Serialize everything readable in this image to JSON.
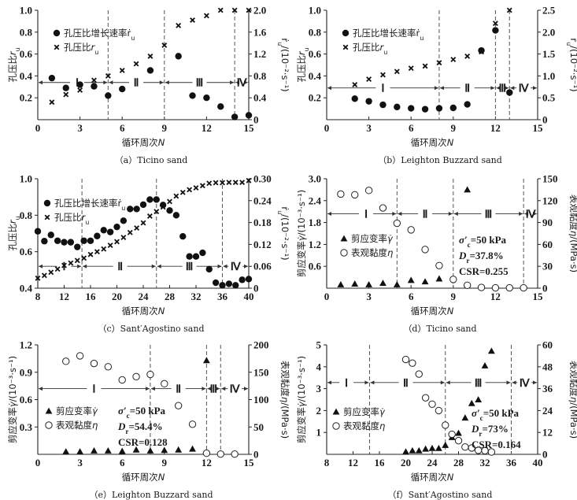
{
  "chart_data": [
    {
      "id": "a",
      "type": "scatter",
      "caption": "（a）Ticino sand",
      "xlabel": "循环周次N",
      "ylabel": "孔压比r_u",
      "ylabel_right": "ṙ_u/(10⁻²·s⁻¹)",
      "xlim": [
        0,
        15
      ],
      "xticks": [
        0,
        3,
        6,
        9,
        12,
        15
      ],
      "ylim": [
        0,
        1.0
      ],
      "yticks": [
        0.2,
        0.4,
        0.6,
        0.8,
        1.0
      ],
      "ylim_right": [
        0,
        2.0
      ],
      "yticks_right": [
        0,
        0.4,
        0.8,
        1.2,
        1.6,
        2.0
      ],
      "stage_boundaries": [
        5,
        9,
        14
      ],
      "stage_arrow_y": 0.34,
      "stages": [
        {
          "label": "Ⅰ",
          "from": 0,
          "to": 5,
          "at": 2.8
        },
        {
          "label": "Ⅱ",
          "from": 5,
          "to": 9,
          "at": 7
        },
        {
          "label": "Ⅲ",
          "from": 9,
          "to": 14,
          "at": 11.5
        },
        {
          "label": "Ⅳ",
          "from": 14,
          "to": 15,
          "at": 14.5
        }
      ],
      "legend": [
        {
          "marker": "dot",
          "label": "孔压比增长速率ṙ_u"
        },
        {
          "marker": "cross",
          "label": "孔压比r_u"
        }
      ],
      "series": [
        {
          "name": "孔压比增长速率ṙ_u",
          "marker": "dot",
          "axis": "right",
          "x": [
            1,
            2,
            3,
            4,
            5,
            6,
            8,
            10,
            11,
            12,
            13,
            14,
            15
          ],
          "y": [
            0.76,
            0.58,
            0.64,
            0.61,
            0.44,
            0.56,
            0.9,
            1.16,
            0.44,
            0.4,
            0.24,
            0.05,
            0.08
          ]
        },
        {
          "name": "孔压比r_u",
          "marker": "cross",
          "axis": "left",
          "x": [
            1,
            2,
            3,
            4,
            5,
            6,
            7,
            8,
            9,
            10,
            11,
            12,
            13,
            14,
            15
          ],
          "y": [
            0.16,
            0.23,
            0.27,
            0.36,
            0.4,
            0.45,
            0.51,
            0.58,
            0.68,
            0.86,
            0.91,
            0.95,
            1.0,
            1.0,
            1.0
          ]
        }
      ],
      "annotations": []
    },
    {
      "id": "b",
      "type": "scatter",
      "caption": "（b）Leighton Buzzard sand",
      "xlabel": "循环周次N",
      "ylabel": "孔压比r_u",
      "ylabel_right": "ṙ_u/(10⁻²·s⁻¹)",
      "xlim": [
        0,
        15
      ],
      "xticks": [
        0,
        3,
        6,
        9,
        12,
        15
      ],
      "ylim": [
        0,
        1.0
      ],
      "yticks": [
        0.2,
        0.4,
        0.6,
        0.8,
        1.0
      ],
      "ylim_right": [
        0,
        2.5
      ],
      "yticks_right": [
        0,
        0.5,
        1.0,
        1.5,
        2.0,
        2.5
      ],
      "stage_boundaries": [
        8,
        12,
        13
      ],
      "stage_arrow_y": 0.29,
      "stages": [
        {
          "label": "Ⅰ",
          "from": 0,
          "to": 8,
          "at": 4
        },
        {
          "label": "Ⅱ",
          "from": 8,
          "to": 12,
          "at": 10
        },
        {
          "label": "Ⅲ",
          "from": 12,
          "to": 13,
          "at": 12.5
        },
        {
          "label": "Ⅳ",
          "from": 13,
          "to": 15,
          "at": 14
        }
      ],
      "legend": [
        {
          "marker": "dot",
          "label": "孔压比增长速率ṙ_u"
        },
        {
          "marker": "cross",
          "label": "孔压比r_u"
        }
      ],
      "series": [
        {
          "name": "孔压比增长速率ṙ_u",
          "marker": "dot",
          "axis": "right",
          "x": [
            2,
            3,
            4,
            5,
            6,
            7,
            8,
            9,
            10,
            11,
            12,
            13
          ],
          "y": [
            0.48,
            0.42,
            0.34,
            0.29,
            0.26,
            0.24,
            0.26,
            0.27,
            0.35,
            1.58,
            2.04,
            0.62
          ]
        },
        {
          "name": "孔压比r_u",
          "marker": "cross",
          "axis": "left",
          "x": [
            2,
            3,
            4,
            5,
            6,
            7,
            8,
            9,
            10,
            11,
            12,
            13
          ],
          "y": [
            0.32,
            0.37,
            0.41,
            0.44,
            0.47,
            0.49,
            0.52,
            0.55,
            0.58,
            0.62,
            0.88,
            1.0
          ]
        }
      ],
      "annotations": []
    },
    {
      "id": "c",
      "type": "scatter",
      "caption": "（c）Sant′Agostino sand",
      "xlabel": "循环周次N",
      "ylabel": "孔压比r_u",
      "ylabel_right": "ṙ_u/(10⁻²·s⁻¹)",
      "xlim": [
        8,
        40
      ],
      "xticks": [
        8,
        12,
        16,
        20,
        24,
        28,
        32,
        36,
        40
      ],
      "ylim": [
        0.4,
        1.0
      ],
      "yticks": [
        0.4,
        0.6,
        0.8,
        1.0
      ],
      "ylim_right": [
        0,
        0.3
      ],
      "yticks_right": [
        0,
        0.06,
        0.12,
        0.18,
        0.24,
        0.3
      ],
      "stage_boundaries": [
        14.7,
        26,
        36
      ],
      "stage_arrow_y": 0.52,
      "stages": [
        {
          "label": "Ⅰ",
          "from": 8,
          "to": 14.7,
          "at": 12
        },
        {
          "label": "Ⅱ",
          "from": 14.7,
          "to": 26,
          "at": 20.5
        },
        {
          "label": "Ⅲ",
          "from": 26,
          "to": 36,
          "at": 31
        },
        {
          "label": "Ⅳ",
          "from": 36,
          "to": 40,
          "at": 38
        }
      ],
      "legend": [
        {
          "marker": "dot",
          "label": "孔压比增长速率ṙ_u"
        },
        {
          "marker": "cross",
          "label": "孔压比r_u"
        }
      ],
      "series": [
        {
          "name": "孔压比增长速率ṙ_u",
          "marker": "dot",
          "axis": "right",
          "x": [
            8,
            9,
            10,
            11,
            12,
            13,
            14,
            15,
            16,
            17,
            18,
            19,
            20,
            21,
            22,
            23,
            24,
            25,
            26,
            27,
            28,
            29,
            30,
            31,
            32,
            33,
            34,
            35,
            36,
            37,
            38,
            39,
            40
          ],
          "y": [
            0.156,
            0.129,
            0.146,
            0.13,
            0.126,
            0.126,
            0.113,
            0.13,
            0.13,
            0.143,
            0.159,
            0.154,
            0.168,
            0.185,
            0.217,
            0.217,
            0.229,
            0.243,
            0.243,
            0.228,
            0.213,
            0.2,
            0.142,
            0.087,
            0.087,
            0.097,
            0.052,
            0.015,
            0.008,
            0.012,
            0.008,
            0.023,
            0.025
          ]
        },
        {
          "name": "孔压比r_u",
          "marker": "cross",
          "axis": "left",
          "x": [
            8,
            9,
            10,
            11,
            12,
            13,
            14,
            15,
            16,
            17,
            18,
            19,
            20,
            21,
            22,
            23,
            24,
            25,
            26,
            27,
            28,
            29,
            30,
            31,
            32,
            33,
            34,
            35,
            36,
            37,
            38,
            39,
            40
          ],
          "y": [
            0.455,
            0.47,
            0.487,
            0.505,
            0.525,
            0.538,
            0.552,
            0.565,
            0.585,
            0.6,
            0.615,
            0.635,
            0.655,
            0.678,
            0.705,
            0.73,
            0.758,
            0.795,
            0.82,
            0.845,
            0.875,
            0.905,
            0.925,
            0.94,
            0.95,
            0.962,
            0.975,
            0.978,
            0.978,
            0.98,
            0.98,
            0.98,
            0.99
          ]
        }
      ],
      "annotations": []
    },
    {
      "id": "d",
      "type": "scatter",
      "caption": "（d）Ticino sand",
      "xlabel": "循环周次N",
      "ylabel": "剪应变率γ̇/(10⁻³·s⁻¹)",
      "ylabel_right": "表观黏度η/(MPa·s)",
      "xlim": [
        0,
        15
      ],
      "xticks": [
        0,
        3,
        6,
        9,
        12,
        15
      ],
      "ylim": [
        0,
        3.0
      ],
      "yticks": [
        0.6,
        1.2,
        1.8,
        2.4,
        3.0
      ],
      "ylim_right": [
        0,
        150
      ],
      "yticks_right": [
        0,
        30,
        60,
        90,
        120,
        150
      ],
      "stage_boundaries": [
        5,
        9,
        14
      ],
      "stage_arrow_y": 2.04,
      "stages": [
        {
          "label": "Ⅰ",
          "from": 0,
          "to": 5,
          "at": 2.8
        },
        {
          "label": "Ⅱ",
          "from": 5,
          "to": 9,
          "at": 7
        },
        {
          "label": "Ⅲ",
          "from": 9,
          "to": 14,
          "at": 11.5
        },
        {
          "label": "Ⅳ",
          "from": 14,
          "to": 15,
          "at": 14.5
        }
      ],
      "legend": [
        {
          "marker": "triangle",
          "label": "剪应变率γ̇"
        },
        {
          "marker": "circle",
          "label": "表观黏度η"
        }
      ],
      "series": [
        {
          "name": "剪应变率γ̇",
          "marker": "triangle",
          "axis": "left",
          "x": [
            1,
            2,
            3,
            4,
            5,
            6,
            7,
            8,
            10
          ],
          "y": [
            0.1,
            0.12,
            0.1,
            0.14,
            0.1,
            0.22,
            0.18,
            0.26,
            2.7
          ]
        },
        {
          "name": "表观黏度η",
          "marker": "circle",
          "axis": "right",
          "x": [
            1,
            2,
            3,
            4,
            5,
            6,
            7,
            8,
            9,
            10,
            11,
            12,
            13,
            14
          ],
          "y": [
            129,
            128,
            134,
            110,
            89,
            80,
            53,
            31,
            12,
            4,
            1,
            0.5,
            0.5,
            0.5
          ]
        }
      ],
      "annotations": [
        "σ′c=50 kPa",
        "Dr=37.8%",
        "CSR=0.255"
      ]
    },
    {
      "id": "e",
      "type": "scatter",
      "caption": "（e）Leighton Buzzard sand",
      "xlabel": "循环周次N",
      "ylabel": "剪应变率γ̇/(10⁻³·s⁻¹)",
      "ylabel_right": "表观黏度η/(MPa·s)",
      "xlim": [
        0,
        15
      ],
      "xticks": [
        0,
        3,
        6,
        9,
        12,
        15
      ],
      "ylim": [
        0,
        1.2
      ],
      "yticks": [
        0.3,
        0.6,
        0.9,
        1.2
      ],
      "ylim_right": [
        0,
        200
      ],
      "yticks_right": [
        0,
        50,
        100,
        150,
        200
      ],
      "stage_boundaries": [
        8,
        12,
        13
      ],
      "stage_arrow_y": 0.72,
      "stages": [
        {
          "label": "Ⅰ",
          "from": 0,
          "to": 8,
          "at": 4
        },
        {
          "label": "Ⅱ",
          "from": 8,
          "to": 12,
          "at": 10
        },
        {
          "label": "Ⅲ",
          "from": 12,
          "to": 13,
          "at": 12.5
        },
        {
          "label": "Ⅳ",
          "from": 13,
          "to": 15,
          "at": 14
        }
      ],
      "legend": [
        {
          "marker": "triangle",
          "label": "剪应变率γ̇"
        },
        {
          "marker": "circle",
          "label": "表观黏度η"
        }
      ],
      "series": [
        {
          "name": "剪应变率γ̇",
          "marker": "triangle",
          "axis": "left",
          "x": [
            2,
            3,
            4,
            5,
            6,
            7,
            8,
            9,
            10,
            11,
            12
          ],
          "y": [
            0.03,
            0.03,
            0.04,
            0.04,
            0.035,
            0.05,
            0.04,
            0.045,
            0.05,
            0.06,
            1.03
          ]
        },
        {
          "name": "表观黏度η",
          "marker": "circle",
          "axis": "right",
          "x": [
            2,
            3,
            4,
            5,
            6,
            7,
            8,
            9,
            10,
            11,
            12,
            13,
            14
          ],
          "y": [
            170,
            180,
            166,
            160,
            136,
            142,
            146,
            129,
            89,
            55,
            2,
            0.5,
            0.5
          ]
        }
      ],
      "annotations": [
        "σ′c=50 kPa",
        "Dr=54.4%",
        "CSR=0.128"
      ]
    },
    {
      "id": "f",
      "type": "scatter",
      "caption": "（f）Sant′Agostino sand",
      "xlabel": "循环周次N",
      "ylabel": "剪应变率γ̇/(10⁻³·s⁻¹)",
      "ylabel_right": "表观黏度η/(MPa·s)",
      "xlim": [
        8,
        40
      ],
      "xticks": [
        8,
        12,
        16,
        20,
        24,
        28,
        32,
        36,
        40
      ],
      "ylim": [
        0,
        5.0
      ],
      "yticks": [
        1.0,
        2.0,
        3.0,
        4.0,
        5.0
      ],
      "ylim_right": [
        0,
        60
      ],
      "yticks_right": [
        0,
        12,
        24,
        36,
        48,
        60
      ],
      "stage_boundaries": [
        14.5,
        26,
        36
      ],
      "stage_arrow_y": 3.28,
      "stages": [
        {
          "label": "Ⅰ",
          "from": 8,
          "to": 14.5,
          "at": 11
        },
        {
          "label": "Ⅱ",
          "from": 14.5,
          "to": 26,
          "at": 20
        },
        {
          "label": "Ⅲ",
          "from": 26,
          "to": 36,
          "at": 31
        },
        {
          "label": "Ⅳ",
          "from": 36,
          "to": 40,
          "at": 38
        }
      ],
      "legend": [
        {
          "marker": "triangle",
          "label": "剪应变率γ̇"
        },
        {
          "marker": "circle",
          "label": "表观黏度η"
        }
      ],
      "series": [
        {
          "name": "剪应变率γ̇",
          "marker": "triangle",
          "axis": "left",
          "x": [
            20,
            21,
            22,
            23,
            24,
            25,
            26,
            27,
            28,
            29,
            30,
            31,
            32,
            33
          ],
          "y": [
            0.12,
            0.17,
            0.17,
            0.25,
            0.28,
            0.28,
            0.42,
            0.78,
            0.97,
            1.67,
            2.33,
            2.5,
            4.05,
            4.72
          ]
        },
        {
          "name": "表观黏度η",
          "marker": "circle",
          "axis": "right",
          "x": [
            20,
            21,
            22,
            23,
            24,
            25,
            26,
            27,
            28,
            29,
            30,
            31,
            32,
            33
          ],
          "y": [
            52,
            50,
            44,
            31,
            27.5,
            24,
            16,
            11,
            7.5,
            4,
            3.5,
            2.2,
            2.0,
            1.3
          ]
        }
      ],
      "annotations": [
        "σ′c=50 kPa",
        "Dr=73%",
        "CSR=0.164"
      ]
    }
  ]
}
